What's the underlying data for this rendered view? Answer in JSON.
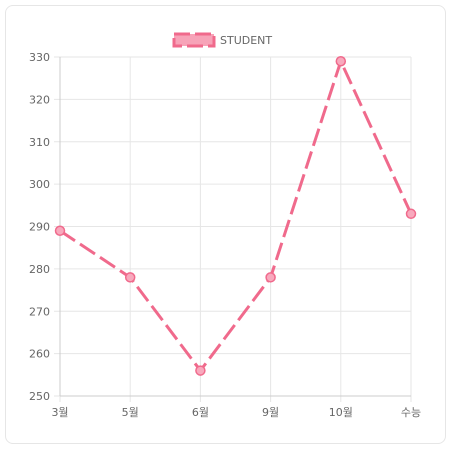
{
  "chart_data": {
    "type": "line",
    "categories": [
      "3월",
      "5월",
      "6월",
      "9월",
      "10월",
      "수능"
    ],
    "series": [
      {
        "name": "STUDENT",
        "values": [
          289,
          278,
          256,
          278,
          329,
          293
        ]
      }
    ],
    "ylim": [
      250,
      330
    ],
    "yticks": [
      250,
      260,
      270,
      280,
      290,
      300,
      310,
      320,
      330
    ],
    "grid": true,
    "legend_position": "top",
    "line_style": "dashed",
    "colors": {
      "line": "#f06a8c",
      "point_fill": "#f8a9bd",
      "legend_fill": "#f7a3b8",
      "grid": "#e6e6e6",
      "axis": "#cccccc"
    }
  }
}
